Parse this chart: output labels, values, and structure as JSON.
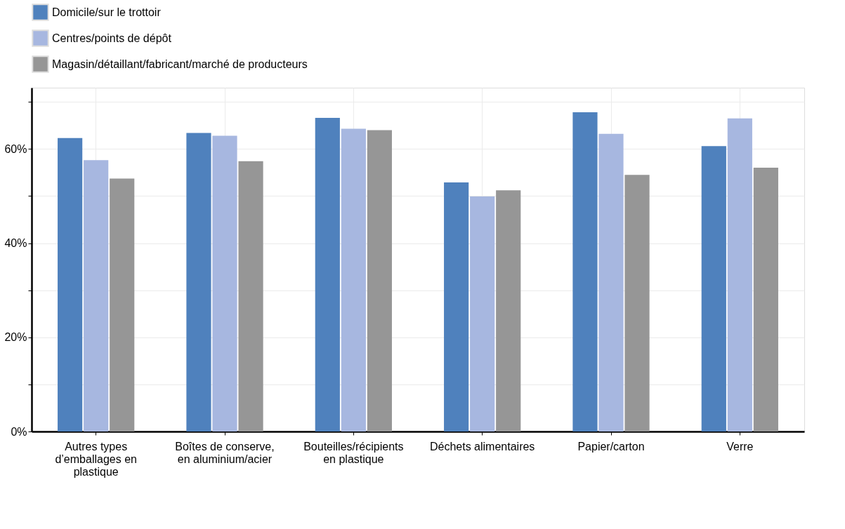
{
  "chart_data": {
    "type": "bar",
    "categories": [
      "Autres types d’emballages en plastique",
      "Boîtes de conserve, en aluminium/acier",
      "Bouteilles/récipients en plastique",
      "Déchets alimentaires",
      "Papier/carton",
      "Verre"
    ],
    "series": [
      {
        "name": "Domicile/sur le trottoir",
        "color": "#4f81bd",
        "values": [
          62.3,
          63.4,
          66.6,
          52.9,
          67.8,
          60.6
        ]
      },
      {
        "name": "Centres/points de dépôt",
        "color": "#a7b7e0",
        "values": [
          57.6,
          62.8,
          64.3,
          49.9,
          63.2,
          66.5
        ]
      },
      {
        "name": "Magasin/détaillant/fabricant/marché de producteurs",
        "color": "#969696",
        "values": [
          53.7,
          57.4,
          64.0,
          51.2,
          54.5,
          56.0
        ]
      }
    ],
    "ylim": [
      0,
      73
    ],
    "yticks": [
      {
        "value": 0,
        "label": "0%"
      },
      {
        "value": 10,
        "label": null
      },
      {
        "value": 20,
        "label": "20%"
      },
      {
        "value": 30,
        "label": null
      },
      {
        "value": 40,
        "label": "40%"
      },
      {
        "value": 50,
        "label": null
      },
      {
        "value": 60,
        "label": "60%"
      },
      {
        "value": 70,
        "label": null
      }
    ],
    "grid": true,
    "legend": "top"
  }
}
